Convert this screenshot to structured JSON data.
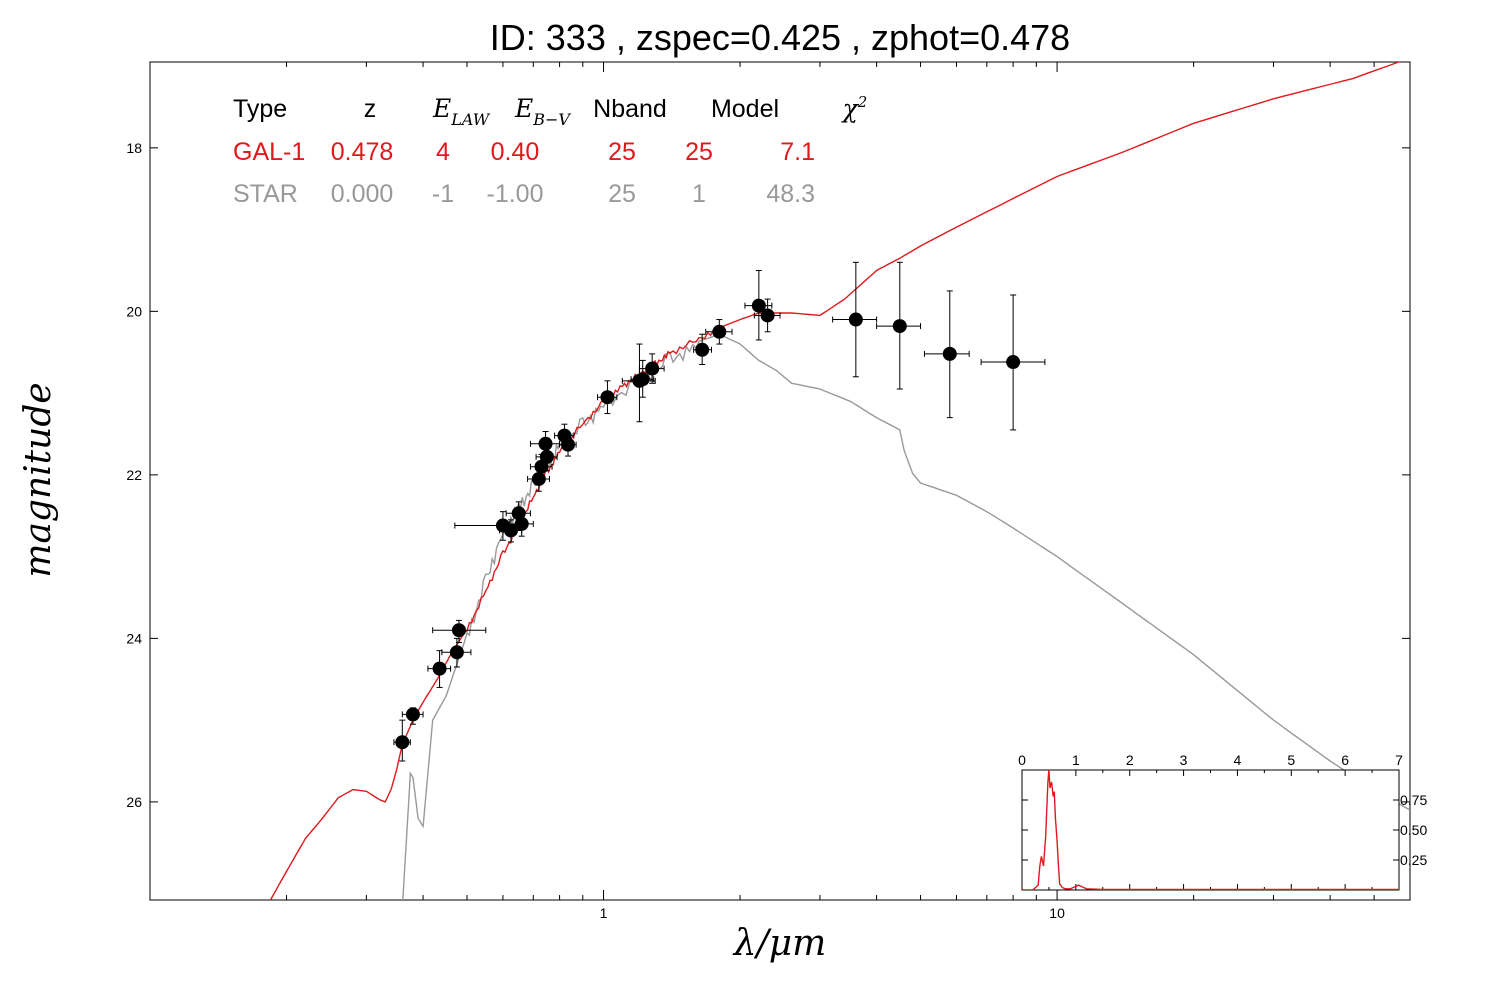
{
  "title": "ID:  333   , zspec=0.425 , zphot=0.478",
  "colors": {
    "galaxy": "#e0191c",
    "star": "#999999",
    "points": "#000000"
  },
  "table": {
    "headers": [
      "Type",
      "z",
      "E_LAW",
      "E_B-V",
      "Nband",
      "Model",
      "χ²"
    ],
    "rows": [
      {
        "type": "GAL-1",
        "z": "0.478",
        "elaw": "4",
        "ebv": "0.40",
        "nband": "25",
        "model": "25",
        "chi2": "7.1",
        "color": "#e0191c"
      },
      {
        "type": "STAR",
        "z": "0.000",
        "elaw": "-1",
        "ebv": "-1.00",
        "nband": "25",
        "model": "1",
        "chi2": "48.3",
        "color": "#999999"
      }
    ]
  },
  "chart_data": [
    {
      "type": "scatter",
      "xlabel": "λ/μm",
      "ylabel": "magnitude",
      "xscale": "log",
      "xlim": [
        0.1,
        60
      ],
      "ylim": [
        27.2,
        16.95
      ],
      "x_ticks": [
        1,
        10
      ],
      "x_tick_labels": [
        "1",
        "10"
      ],
      "y_ticks": [
        18,
        20,
        22,
        24,
        26
      ],
      "y_tick_labels": [
        "18",
        "20",
        "22",
        "24",
        "26"
      ],
      "grid": false,
      "points": [
        {
          "x": 0.36,
          "y": 25.27,
          "xlo": 0.345,
          "xhi": 0.375,
          "ylo": 25.0,
          "yhi": 25.5
        },
        {
          "x": 0.38,
          "y": 24.93,
          "xlo": 0.36,
          "xhi": 0.4,
          "ylo": 24.85,
          "yhi": 25.05
        },
        {
          "x": 0.435,
          "y": 24.37,
          "xlo": 0.41,
          "xhi": 0.46,
          "ylo": 24.15,
          "yhi": 24.6
        },
        {
          "x": 0.475,
          "y": 24.17,
          "xlo": 0.44,
          "xhi": 0.51,
          "ylo": 24.0,
          "yhi": 24.35
        },
        {
          "x": 0.48,
          "y": 23.9,
          "xlo": 0.42,
          "xhi": 0.55,
          "ylo": 23.78,
          "yhi": 24.05
        },
        {
          "x": 0.6,
          "y": 22.62,
          "xlo": 0.47,
          "xhi": 0.65,
          "ylo": 22.45,
          "yhi": 22.8
        },
        {
          "x": 0.625,
          "y": 22.68,
          "xlo": 0.59,
          "xhi": 0.66,
          "ylo": 22.55,
          "yhi": 22.82
        },
        {
          "x": 0.65,
          "y": 22.47,
          "xlo": 0.61,
          "xhi": 0.69,
          "ylo": 22.33,
          "yhi": 22.62
        },
        {
          "x": 0.66,
          "y": 22.6,
          "xlo": 0.62,
          "xhi": 0.7,
          "ylo": 22.45,
          "yhi": 22.75
        },
        {
          "x": 0.72,
          "y": 22.05,
          "xlo": 0.68,
          "xhi": 0.76,
          "ylo": 21.9,
          "yhi": 22.2
        },
        {
          "x": 0.73,
          "y": 21.9,
          "xlo": 0.69,
          "xhi": 0.77,
          "ylo": 21.75,
          "yhi": 22.05
        },
        {
          "x": 0.75,
          "y": 21.78,
          "xlo": 0.71,
          "xhi": 0.79,
          "ylo": 21.6,
          "yhi": 21.95
        },
        {
          "x": 0.745,
          "y": 21.62,
          "xlo": 0.69,
          "xhi": 0.8,
          "ylo": 21.47,
          "yhi": 21.77
        },
        {
          "x": 0.82,
          "y": 21.52,
          "xlo": 0.78,
          "xhi": 0.86,
          "ylo": 21.38,
          "yhi": 21.67
        },
        {
          "x": 0.835,
          "y": 21.63,
          "xlo": 0.8,
          "xhi": 0.87,
          "ylo": 21.5,
          "yhi": 21.77
        },
        {
          "x": 1.02,
          "y": 21.05,
          "xlo": 0.97,
          "xhi": 1.07,
          "ylo": 20.85,
          "yhi": 21.25
        },
        {
          "x": 1.2,
          "y": 20.85,
          "xlo": 1.1,
          "xhi": 1.3,
          "ylo": 20.4,
          "yhi": 21.35
        },
        {
          "x": 1.22,
          "y": 20.83,
          "xlo": 1.15,
          "xhi": 1.29,
          "ylo": 20.6,
          "yhi": 21.05
        },
        {
          "x": 1.28,
          "y": 20.7,
          "xlo": 1.2,
          "xhi": 1.36,
          "ylo": 20.52,
          "yhi": 20.88
        },
        {
          "x": 1.65,
          "y": 20.47,
          "xlo": 1.58,
          "xhi": 1.73,
          "ylo": 20.28,
          "yhi": 20.65
        },
        {
          "x": 1.8,
          "y": 20.25,
          "xlo": 1.68,
          "xhi": 1.92,
          "ylo": 20.1,
          "yhi": 20.4
        },
        {
          "x": 2.2,
          "y": 19.93,
          "xlo": 2.05,
          "xhi": 2.35,
          "ylo": 19.5,
          "yhi": 20.35
        },
        {
          "x": 2.3,
          "y": 20.05,
          "xlo": 2.15,
          "xhi": 2.45,
          "ylo": 19.85,
          "yhi": 20.25
        },
        {
          "x": 3.6,
          "y": 20.1,
          "xlo": 3.2,
          "xhi": 4.0,
          "ylo": 19.4,
          "yhi": 20.8
        },
        {
          "x": 4.5,
          "y": 20.18,
          "xlo": 4.0,
          "xhi": 5.0,
          "ylo": 19.4,
          "yhi": 20.95
        },
        {
          "x": 5.8,
          "y": 20.52,
          "xlo": 5.1,
          "xhi": 6.4,
          "ylo": 19.75,
          "yhi": 21.3
        },
        {
          "x": 8.0,
          "y": 20.62,
          "xlo": 6.8,
          "xhi": 9.4,
          "ylo": 19.8,
          "yhi": 21.45
        }
      ],
      "series": [
        {
          "name": "GAL-1",
          "color": "#e0191c",
          "x": [
            0.18,
            0.2,
            0.22,
            0.24,
            0.26,
            0.28,
            0.3,
            0.32,
            0.33,
            0.34,
            0.35,
            0.36,
            0.38,
            0.4,
            0.43,
            0.46,
            0.5,
            0.55,
            0.6,
            0.65,
            0.7,
            0.75,
            0.8,
            0.9,
            1.0,
            1.1,
            1.2,
            1.3,
            1.4,
            1.6,
            1.8,
            2.0,
            2.2,
            2.6,
            3.0,
            3.4,
            4.0,
            4.5,
            5.0,
            6.0,
            8.0,
            10.0,
            14.0,
            20.0,
            30.0,
            45.0,
            60.0
          ],
          "y": [
            27.3,
            26.85,
            26.45,
            26.2,
            25.95,
            25.85,
            25.87,
            25.97,
            26.0,
            25.85,
            25.6,
            25.3,
            25.0,
            24.78,
            24.5,
            24.2,
            23.88,
            23.4,
            22.95,
            22.6,
            22.25,
            21.95,
            21.7,
            21.35,
            21.1,
            20.9,
            20.75,
            20.62,
            20.5,
            20.33,
            20.2,
            20.1,
            20.02,
            20.02,
            20.05,
            19.85,
            19.5,
            19.35,
            19.2,
            18.97,
            18.62,
            18.35,
            18.05,
            17.7,
            17.4,
            17.15,
            16.9
          ]
        },
        {
          "name": "STAR",
          "color": "#999999",
          "x": [
            0.36,
            0.37,
            0.375,
            0.38,
            0.39,
            0.4,
            0.42,
            0.45,
            0.5,
            0.55,
            0.6,
            0.65,
            0.7,
            0.75,
            0.8,
            0.9,
            1.0,
            1.2,
            1.4,
            1.6,
            1.8,
            2.0,
            2.2,
            2.4,
            2.6,
            3.0,
            3.5,
            4.0,
            4.5,
            4.6,
            4.8,
            5.0,
            6.0,
            7.0,
            8.0,
            10.0,
            15.0,
            20.0,
            30.0,
            40.0,
            50.0,
            60.0
          ],
          "y": [
            27.3,
            26.2,
            25.65,
            25.7,
            26.2,
            26.3,
            25.0,
            24.7,
            23.95,
            23.25,
            22.65,
            22.35,
            22.1,
            21.85,
            21.6,
            21.35,
            21.1,
            20.8,
            20.55,
            20.38,
            20.28,
            20.4,
            20.6,
            20.72,
            20.88,
            20.95,
            21.1,
            21.3,
            21.45,
            21.7,
            21.98,
            22.1,
            22.25,
            22.45,
            22.65,
            23.0,
            23.7,
            24.2,
            25.0,
            25.5,
            25.85,
            26.1
          ]
        }
      ]
    },
    {
      "type": "line",
      "xlabel": "",
      "ylabel": "",
      "xlim": [
        0,
        7
      ],
      "ylim": [
        0,
        1.0
      ],
      "x_ticks": [
        0,
        1,
        2,
        3,
        4,
        5,
        6,
        7
      ],
      "x_tick_labels": [
        "0",
        "1",
        "2",
        "3",
        "4",
        "5",
        "6",
        "7"
      ],
      "y_ticks": [
        0.25,
        0.5,
        0.75
      ],
      "y_tick_labels": [
        "0.25",
        "0.50",
        "0.75"
      ],
      "grid": false,
      "series": [
        {
          "color": "#e0191c",
          "x": [
            0,
            0.2,
            0.3,
            0.33,
            0.36,
            0.4,
            0.44,
            0.48,
            0.5,
            0.52,
            0.55,
            0.58,
            0.6,
            0.62,
            0.65,
            0.68,
            0.7,
            0.75,
            0.8,
            0.9,
            1.0,
            1.05,
            1.1,
            1.15,
            1.2,
            1.5,
            7.0
          ],
          "y": [
            0,
            0,
            0.04,
            0.2,
            0.28,
            0.2,
            0.45,
            0.9,
            1.0,
            0.85,
            0.9,
            0.78,
            0.82,
            0.6,
            0.42,
            0.18,
            0.05,
            0.02,
            0.01,
            0.01,
            0.03,
            0.04,
            0.03,
            0.02,
            0.01,
            0.005,
            0.005
          ]
        }
      ]
    }
  ]
}
